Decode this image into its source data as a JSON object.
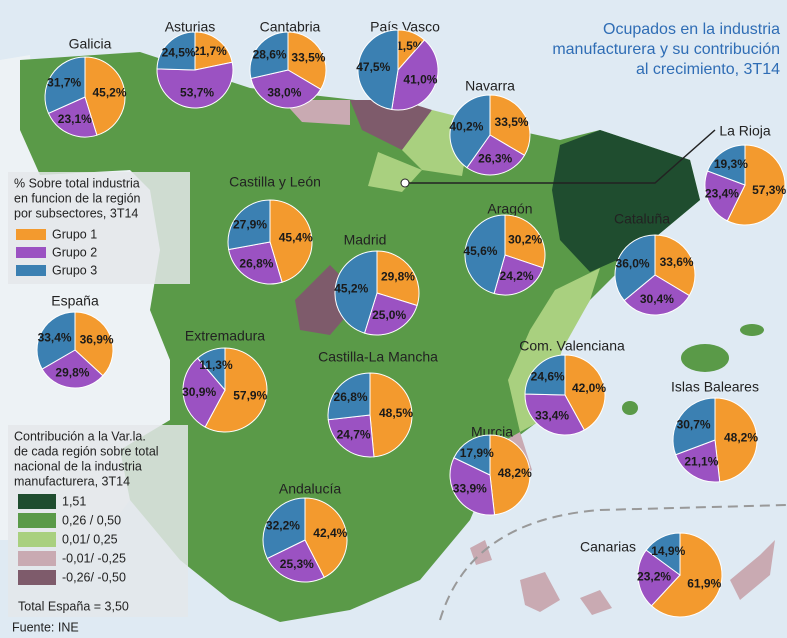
{
  "title_lines": [
    "Ocupados en la industria",
    "manufacturera y su contribución",
    "al crecimiento, 3T14"
  ],
  "legend_groups": {
    "title_lines": [
      "% Sobre total industria",
      "en funcion de la región",
      "por subsectores, 3T14"
    ],
    "groups": [
      {
        "name": "Grupo 1",
        "color": "#f39a2e"
      },
      {
        "name": "Grupo 2",
        "color": "#9b52c2"
      },
      {
        "name": "Grupo 3",
        "color": "#3b80b2"
      }
    ]
  },
  "legend_contribution": {
    "title_lines": [
      "Contribución a la Var.la.",
      "de cada región sobre total",
      "nacional de la industria",
      "manufacturera, 3T14"
    ],
    "classes": [
      {
        "label": "1,51",
        "color": "#1f4d2f"
      },
      {
        "label": "0,26 / 0,50",
        "color": "#5a9a48"
      },
      {
        "label": "0,01/ 0,25",
        "color": "#a9d07f"
      },
      {
        "label": "-0,01/ -0,25",
        "color": "#c9aab2"
      },
      {
        "label": "-0,26/ -0,50",
        "color": "#7e5b6b"
      }
    ],
    "total": "Total España = 3,50"
  },
  "source": "Fuente: INE",
  "regions": [
    {
      "name": "Galicia",
      "values": [
        45.2,
        23.1,
        31.7
      ],
      "value_labels": [
        "45,2%",
        "23,1%",
        "31,7%"
      ]
    },
    {
      "name": "Asturias",
      "values": [
        21.7,
        53.7,
        24.5
      ],
      "value_labels": [
        "21,7%",
        "53,7%",
        "24,5%"
      ]
    },
    {
      "name": "Cantabria",
      "values": [
        33.5,
        38.0,
        28.6
      ],
      "value_labels": [
        "33,5%",
        "38,0%",
        "28,6%"
      ]
    },
    {
      "name": "País Vasco",
      "values": [
        11.5,
        41.0,
        47.5
      ],
      "value_labels": [
        "11,5%",
        "41,0%",
        "47,5%"
      ]
    },
    {
      "name": "Navarra",
      "values": [
        33.5,
        26.3,
        40.2
      ],
      "value_labels": [
        "33,5%",
        "26,3%",
        "40,2%"
      ]
    },
    {
      "name": "La Rioja",
      "values": [
        57.3,
        23.4,
        19.3
      ],
      "value_labels": [
        "57,3%",
        "23,4%",
        "19,3%"
      ]
    },
    {
      "name": "Castilla y León",
      "values": [
        45.4,
        26.8,
        27.9
      ],
      "value_labels": [
        "45,4%",
        "26,8%",
        "27,9%"
      ]
    },
    {
      "name": "Madrid",
      "values": [
        29.8,
        25.0,
        45.2
      ],
      "value_labels": [
        "29,8%",
        "25,0%",
        "45,2%"
      ]
    },
    {
      "name": "Aragón",
      "values": [
        30.2,
        24.2,
        45.6
      ],
      "value_labels": [
        "30,2%",
        "24,2%",
        "45,6%"
      ]
    },
    {
      "name": "Cataluña",
      "values": [
        33.6,
        30.4,
        36.0
      ],
      "value_labels": [
        "33,6%",
        "30,4%",
        "36,0%"
      ]
    },
    {
      "name": "España",
      "values": [
        36.9,
        29.8,
        33.4
      ],
      "value_labels": [
        "36,9%",
        "29,8%",
        "33,4%"
      ]
    },
    {
      "name": "Extremadura",
      "values": [
        57.9,
        30.9,
        11.3
      ],
      "value_labels": [
        "57,9%",
        "30,9%",
        "11,3%"
      ]
    },
    {
      "name": "Castilla-La Mancha",
      "values": [
        48.5,
        24.7,
        26.8
      ],
      "value_labels": [
        "48,5%",
        "24,7%",
        "26,8%"
      ]
    },
    {
      "name": "Com. Valenciana",
      "values": [
        42.0,
        33.4,
        24.6
      ],
      "value_labels": [
        "42,0%",
        "33,4%",
        "24,6%"
      ]
    },
    {
      "name": "Islas Baleares",
      "values": [
        48.2,
        21.1,
        30.7
      ],
      "value_labels": [
        "48,2%",
        "21,1%",
        "30,7%"
      ]
    },
    {
      "name": "Murcia",
      "values": [
        48.2,
        33.9,
        17.9
      ],
      "value_labels": [
        "48,2%",
        "33,9%",
        "17,9%"
      ]
    },
    {
      "name": "Andalucía",
      "values": [
        42.4,
        25.3,
        32.2
      ],
      "value_labels": [
        "42,4%",
        "25,3%",
        "32,2%"
      ]
    },
    {
      "name": "Canarias",
      "values": [
        61.9,
        23.2,
        14.9
      ],
      "value_labels": [
        "61,9%",
        "23,2%",
        "14,9%"
      ]
    }
  ]
}
